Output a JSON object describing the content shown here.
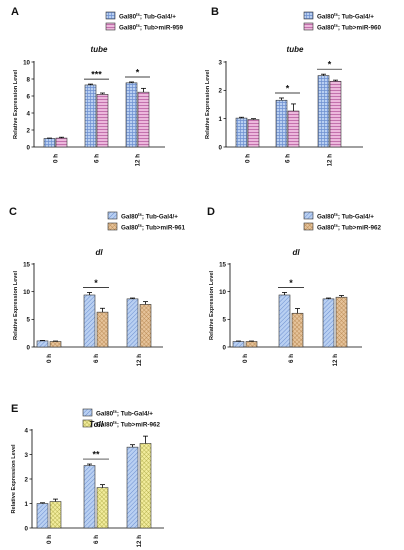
{
  "figure": {
    "legend_ctrl": "Gal80ts; Tub-Gal4/+"
  },
  "chart_data": [
    {
      "panel": "A",
      "type": "bar",
      "title": "tube",
      "ylabel": "Relative Expression Level",
      "categories": [
        "0 h",
        "6 h",
        "12 h"
      ],
      "ylim": [
        0,
        10
      ],
      "yticks": [
        0,
        2,
        4,
        6,
        8,
        10
      ],
      "series": [
        {
          "name": "Gal80ts; Tub-Gal4/+",
          "values": [
            1.0,
            7.3,
            7.55
          ],
          "errors": [
            0.05,
            0.1,
            0.1
          ],
          "color": "#a9c4ec"
        },
        {
          "name": "Gal80ts; Tub>miR-959",
          "values": [
            1.05,
            6.2,
            6.45
          ],
          "errors": [
            0.1,
            0.15,
            0.45
          ],
          "color": "#e2a6cf"
        }
      ],
      "significance": [
        {
          "category": "6 h",
          "label": "***"
        },
        {
          "category": "12 h",
          "label": "*"
        }
      ]
    },
    {
      "panel": "B",
      "type": "bar",
      "title": "tube",
      "ylabel": "Relative Expression Level",
      "categories": [
        "0 h",
        "6 h",
        "12 h"
      ],
      "ylim": [
        0,
        3
      ],
      "yticks": [
        0,
        1,
        2,
        3
      ],
      "series": [
        {
          "name": "Gal80ts; Tub-Gal4/+",
          "values": [
            1.02,
            1.65,
            2.52
          ],
          "errors": [
            0.03,
            0.08,
            0.05
          ],
          "color": "#a9c4ec"
        },
        {
          "name": "Gal80ts; Tub>miR-960",
          "values": [
            0.97,
            1.27,
            2.32
          ],
          "errors": [
            0.03,
            0.25,
            0.04
          ],
          "color": "#e2a6cf"
        }
      ],
      "significance": [
        {
          "category": "6 h",
          "label": "*"
        },
        {
          "category": "12 h",
          "label": "*"
        }
      ]
    },
    {
      "panel": "C",
      "type": "bar",
      "title": "dl",
      "ylabel": "Relative Expression Level",
      "categories": [
        "0 h",
        "6 h",
        "12 h"
      ],
      "ylim": [
        0,
        15
      ],
      "yticks": [
        0,
        5,
        10,
        15
      ],
      "series": [
        {
          "name": "Gal80ts; Tub-Gal4/+",
          "values": [
            1.1,
            9.4,
            8.7
          ],
          "errors": [
            0.08,
            0.45,
            0.15
          ],
          "color": "#a9c4ec"
        },
        {
          "name": "Gal80ts; Tub>miR-961",
          "values": [
            1.0,
            6.3,
            7.7
          ],
          "errors": [
            0.08,
            0.7,
            0.5
          ],
          "color": "#dab07c"
        }
      ],
      "significance": [
        {
          "category": "6 h",
          "label": "*"
        }
      ]
    },
    {
      "panel": "D",
      "type": "bar",
      "title": "dl",
      "ylabel": "Relative Expression Level",
      "categories": [
        "0 h",
        "6 h",
        "12 h"
      ],
      "ylim": [
        0,
        15
      ],
      "yticks": [
        0,
        5,
        10,
        15
      ],
      "series": [
        {
          "name": "Gal80ts; Tub-Gal4/+",
          "values": [
            1.0,
            9.4,
            8.7
          ],
          "errors": [
            0.08,
            0.45,
            0.15
          ],
          "color": "#a9c4ec"
        },
        {
          "name": "Gal80ts; Tub>miR-962",
          "values": [
            1.0,
            6.1,
            9.0
          ],
          "errors": [
            0.08,
            0.85,
            0.3
          ],
          "color": "#dab07c"
        }
      ],
      "significance": [
        {
          "category": "6 h",
          "label": "*"
        }
      ]
    },
    {
      "panel": "E",
      "type": "bar",
      "title": "Toll",
      "ylabel": "Relative Expression Level",
      "categories": [
        "0 h",
        "6 h",
        "12 h"
      ],
      "ylim": [
        0,
        4
      ],
      "yticks": [
        0,
        1,
        2,
        3,
        4
      ],
      "series": [
        {
          "name": "Gal80ts; Tub-Gal4/+",
          "values": [
            1.0,
            2.55,
            3.3
          ],
          "errors": [
            0.03,
            0.06,
            0.1
          ],
          "color": "#a9c4ec"
        },
        {
          "name": "Gal80ts; Tub>miR-962",
          "values": [
            1.08,
            1.65,
            3.45
          ],
          "errors": [
            0.1,
            0.12,
            0.3
          ],
          "color": "#ece27e"
        }
      ],
      "significance": [
        {
          "category": "6 h",
          "label": "**"
        }
      ]
    }
  ]
}
